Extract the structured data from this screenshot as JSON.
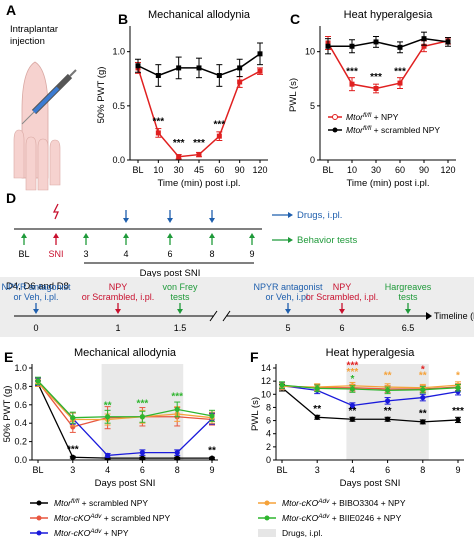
{
  "figure": {
    "A": {
      "label": "A",
      "text": [
        "Intraplantar",
        "injection"
      ]
    },
    "D": {
      "label": "D",
      "timeline1": {
        "ticks": [
          "BL",
          "SNI",
          "3",
          "4",
          "6",
          "8",
          "9"
        ],
        "xlabel": "Days post SNI",
        "legend_drugs": "Drugs, i.pl.",
        "legend_behavior": "Behavior tests"
      },
      "timeline2": {
        "header": "D4, D6 and D8",
        "events": [
          {
            "lines": [
              "NPYR antagonist",
              "or Veh, i.pl."
            ],
            "color": "#1f5fad"
          },
          {
            "lines": [
              "NPY",
              "or Scrambled, i.pl."
            ],
            "color": "#c8102e"
          },
          {
            "lines": [
              "von Frey",
              "tests"
            ],
            "color": "#1f9a3a"
          },
          {
            "lines": [
              "NPYR antagonist",
              "or Veh, i.pl."
            ],
            "color": "#1f5fad"
          },
          {
            "lines": [
              "NPY",
              "or Scrambled, i.pl."
            ],
            "color": "#c8102e"
          },
          {
            "lines": [
              "Hargreaves",
              "tests"
            ],
            "color": "#1f9a3a"
          }
        ],
        "ticks": [
          "0",
          "1",
          "1.5",
          "5",
          "6",
          "6.5"
        ],
        "axis_label": "Timeline (h)"
      }
    },
    "legend_BC": {
      "npy": "Mtor fl/fl + NPY",
      "scrambled": "Mtor fl/fl + scrambled NPY"
    },
    "legend_EF": {
      "items": [
        {
          "text": "Mtor fl/fl + scrambled NPY",
          "color": "#000000"
        },
        {
          "text": "Mtor-cKO Adv + scrambled NPY",
          "color": "#e8563f"
        },
        {
          "text": "Mtor-cKO Adv + NPY",
          "color": "#1a1adb"
        },
        {
          "text": "Mtor-cKO Adv + BIBO3304 + NPY",
          "color": "#f5a23a"
        },
        {
          "text": "Mtor-cKO Adv + BIIE0246 + NPY",
          "color": "#2fb52f"
        },
        {
          "text": "Drugs, i.pl.",
          "color": "#e6e6e6"
        }
      ]
    }
  },
  "chart_data": [
    {
      "panel": "B",
      "type": "line",
      "title": "Mechanical allodynia",
      "xlabel": "Time (min) post i.pl.",
      "ylabel": "50% PWT (g)",
      "categories": [
        "BL",
        "10",
        "30",
        "45",
        "60",
        "90",
        "120"
      ],
      "ylim": [
        0,
        1.2
      ],
      "yticks": [
        "0.0",
        "0.5",
        "1.0"
      ],
      "series": [
        {
          "name": "Mtor fl/fl + NPY",
          "color": "#e02020",
          "values": [
            0.85,
            0.25,
            0.03,
            0.05,
            0.22,
            0.72,
            0.82
          ],
          "errors": [
            0.05,
            0.04,
            0.02,
            0.02,
            0.04,
            0.05,
            0.03
          ]
        },
        {
          "name": "Mtor fl/fl + scrambled NPY",
          "color": "#000000",
          "values": [
            0.87,
            0.78,
            0.85,
            0.85,
            0.78,
            0.85,
            0.98
          ],
          "errors": [
            0.06,
            0.1,
            0.1,
            0.09,
            0.1,
            0.08,
            0.1
          ]
        }
      ],
      "annotations": [
        "***",
        "***",
        "***",
        "***"
      ]
    },
    {
      "panel": "C",
      "type": "line",
      "title": "Heat hyperalgesia",
      "xlabel": "Time (min) post i.pl.",
      "ylabel": "PWL (s)",
      "categories": [
        "BL",
        "10",
        "30",
        "60",
        "90",
        "120"
      ],
      "ylim": [
        0,
        12
      ],
      "yticks": [
        "0",
        "5",
        "10"
      ],
      "series": [
        {
          "name": "Mtor fl/fl + NPY",
          "color": "#e02020",
          "values": [
            10.8,
            7.0,
            6.6,
            7.1,
            10.5,
            11.0
          ],
          "errors": [
            0.6,
            0.6,
            0.4,
            0.5,
            0.5,
            0.3
          ]
        },
        {
          "name": "Mtor fl/fl + scrambled NPY",
          "color": "#000000",
          "values": [
            10.5,
            10.5,
            10.9,
            10.4,
            11.2,
            10.9
          ],
          "errors": [
            0.7,
            0.6,
            0.5,
            0.5,
            0.6,
            0.4
          ]
        }
      ],
      "annotations": [
        "***",
        "***",
        "***"
      ]
    },
    {
      "panel": "E",
      "type": "line",
      "title": "Mechanical allodynia",
      "xlabel": "Days post SNI",
      "ylabel": "50% PWT (g)",
      "categories": [
        "BL",
        "3",
        "4",
        "6",
        "8",
        "9"
      ],
      "ylim": [
        0,
        1.0
      ],
      "yticks": [
        "0.0",
        "0.2",
        "0.4",
        "0.6",
        "0.8",
        "1.0"
      ],
      "shaded": [
        "4",
        "8"
      ],
      "series": [
        {
          "name": "Mtor fl/fl + scrambled NPY",
          "color": "#000000",
          "values": [
            0.83,
            0.03,
            0.02,
            0.02,
            0.02,
            0.02
          ],
          "errors": [
            0.03,
            0.01,
            0.01,
            0.01,
            0.01,
            0.01
          ]
        },
        {
          "name": "Mtor-cKO Adv + scrambled NPY",
          "color": "#e8563f",
          "values": [
            0.85,
            0.36,
            0.46,
            0.47,
            0.47,
            0.44
          ],
          "errors": [
            0.04,
            0.06,
            0.12,
            0.1,
            0.1,
            0.06
          ]
        },
        {
          "name": "Mtor-cKO Adv + NPY",
          "color": "#1a1adb",
          "values": [
            0.85,
            0.45,
            0.05,
            0.08,
            0.08,
            0.45
          ],
          "errors": [
            0.04,
            0.06,
            0.02,
            0.03,
            0.03,
            0.06
          ]
        },
        {
          "name": "Mtor-cKO Adv + BIBO3304 + NPY",
          "color": "#f5a23a",
          "values": [
            0.84,
            0.44,
            0.44,
            0.47,
            0.5,
            0.46
          ],
          "errors": [
            0.04,
            0.07,
            0.06,
            0.07,
            0.08,
            0.06
          ]
        },
        {
          "name": "Mtor-cKO Adv + BIIE0246 + NPY",
          "color": "#2fb52f",
          "values": [
            0.86,
            0.46,
            0.47,
            0.47,
            0.55,
            0.48
          ],
          "errors": [
            0.04,
            0.06,
            0.07,
            0.06,
            0.08,
            0.06
          ]
        }
      ],
      "annotations": [
        "***",
        "**",
        "***",
        "***",
        "**"
      ]
    },
    {
      "panel": "F",
      "type": "line",
      "title": "Heat hyperalgesia",
      "xlabel": "Days post SNI",
      "ylabel": "PWL (s)",
      "categories": [
        "BL",
        "3",
        "4",
        "6",
        "8",
        "9"
      ],
      "ylim": [
        0,
        14
      ],
      "yticks": [
        "0",
        "2",
        "4",
        "6",
        "8",
        "10",
        "12",
        "14"
      ],
      "shaded": [
        "4",
        "8"
      ],
      "series": [
        {
          "name": "Mtor fl/fl + scrambled NPY",
          "color": "#000000",
          "values": [
            11.0,
            6.5,
            6.2,
            6.2,
            5.8,
            6.1
          ],
          "errors": [
            0.5,
            0.3,
            0.3,
            0.3,
            0.3,
            0.4
          ]
        },
        {
          "name": "Mtor-cKO Adv + scrambled NPY",
          "color": "#e8563f",
          "values": [
            11.3,
            11.0,
            11.0,
            10.8,
            10.8,
            11.1
          ],
          "errors": [
            0.5,
            0.5,
            0.5,
            0.5,
            0.5,
            0.5
          ]
        },
        {
          "name": "Mtor-cKO Adv + NPY",
          "color": "#1a1adb",
          "values": [
            11.3,
            10.6,
            8.3,
            9.0,
            9.5,
            10.4
          ],
          "errors": [
            0.5,
            0.5,
            0.4,
            0.5,
            0.5,
            0.5
          ]
        },
        {
          "name": "Mtor-cKO Adv + BIBO3304 + NPY",
          "color": "#f5a23a",
          "values": [
            11.2,
            11.1,
            11.3,
            11.1,
            11.0,
            11.4
          ],
          "errors": [
            0.5,
            0.5,
            0.5,
            0.5,
            0.5,
            0.5
          ]
        },
        {
          "name": "Mtor-cKO Adv + BIIE0246 + NPY",
          "color": "#2fb52f",
          "values": [
            11.4,
            10.9,
            10.8,
            10.6,
            10.7,
            11.0
          ],
          "errors": [
            0.5,
            0.5,
            0.5,
            0.5,
            0.5,
            0.5
          ]
        }
      ],
      "annotations": [
        "**",
        "**",
        "**",
        "**",
        "***",
        "***",
        "***",
        "*",
        "**",
        "**",
        "*",
        "*"
      ]
    }
  ]
}
